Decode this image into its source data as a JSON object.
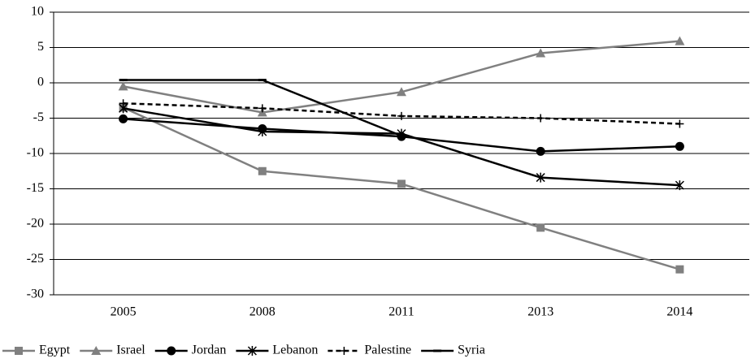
{
  "chart_data": {
    "type": "line",
    "categories": [
      "2005",
      "2008",
      "2011",
      "2013",
      "2014"
    ],
    "series": [
      {
        "name": "Egypt",
        "color": "#808080",
        "marker": "square",
        "dash": false,
        "values": [
          -3.5,
          -12.5,
          -14.3,
          -20.5,
          -26.4
        ]
      },
      {
        "name": "Israel",
        "color": "#808080",
        "marker": "triangle",
        "dash": false,
        "values": [
          -0.5,
          -4.2,
          -1.3,
          4.2,
          5.9
        ]
      },
      {
        "name": "Jordan",
        "color": "#000000",
        "marker": "circle",
        "dash": false,
        "values": [
          -5.1,
          -6.5,
          -7.6,
          -9.7,
          -9.0
        ]
      },
      {
        "name": "Lebanon",
        "color": "#000000",
        "marker": "star",
        "dash": false,
        "values": [
          -3.6,
          -6.9,
          -7.2,
          -13.4,
          -14.5
        ]
      },
      {
        "name": "Palestine",
        "color": "#000000",
        "marker": "plus",
        "dash": true,
        "values": [
          -2.9,
          -3.6,
          -4.7,
          -5.0,
          -5.8
        ]
      },
      {
        "name": "Syria",
        "color": "#000000",
        "marker": "dash",
        "dash": false,
        "values": [
          0.4,
          0.4,
          -7.5,
          null,
          null
        ]
      }
    ],
    "ylim": [
      -30,
      10
    ],
    "yticks": [
      -30,
      -25,
      -20,
      -15,
      -10,
      -5,
      0,
      5,
      10
    ],
    "grid": true,
    "legend": "bottom"
  }
}
